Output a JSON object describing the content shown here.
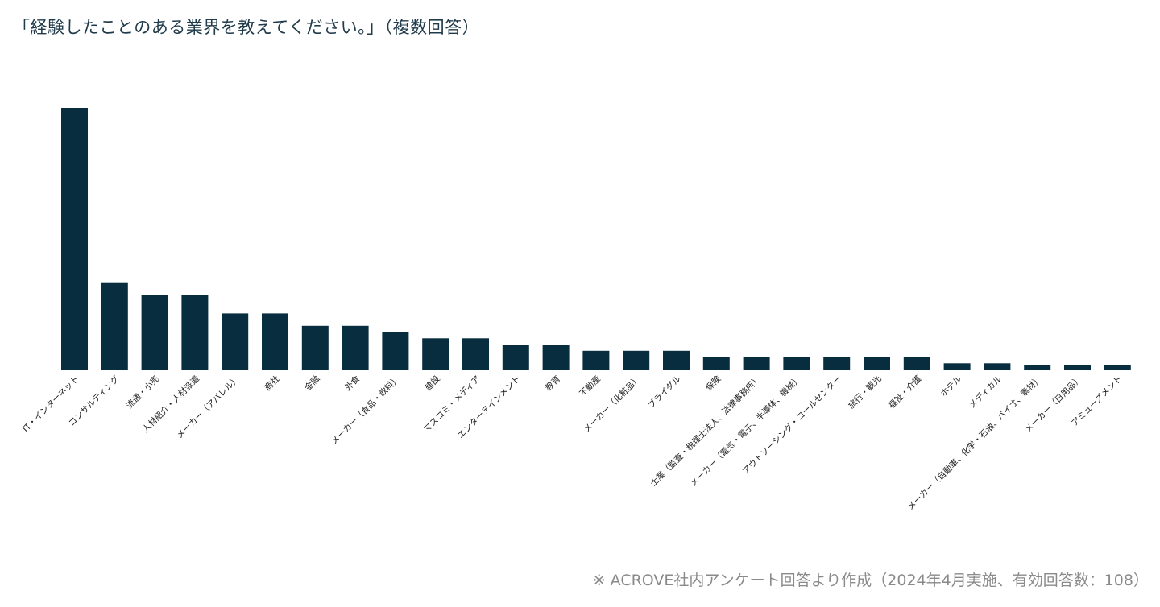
{
  "title": "「経験したことのある業界を教えてください。」（複数回答）",
  "footnote": "※ ACROVE社内アンケート回答より作成（2024年4月実施、有効回答数：108）",
  "colors": {
    "bar": "#082d3f"
  },
  "chart_data": {
    "type": "bar",
    "title": "「経験したことのある業界を教えてください。」（複数回答）",
    "xlabel": "",
    "ylabel": "",
    "ylim": [
      0,
      42
    ],
    "grid": false,
    "categories": [
      "IT・インターネット",
      "コンサルティング",
      "流通・小売",
      "人材紹介・人材派遣",
      "メーカー（アパレル）",
      "商社",
      "金融",
      "外食",
      "メーカー（食品・飲料）",
      "建設",
      "マスコミ・メディア",
      "エンターテインメント",
      "教育",
      "不動産",
      "メーカー（化粧品）",
      "ブライダル",
      "保険",
      "士業（監査・税理士法人、法律事務所）",
      "メーカー（電気・電子、半導体、機械）",
      "アウトソーシング・コールセンター",
      "旅行・観光",
      "福祉・介護",
      "ホテル",
      "メディカル",
      "メーカー（自動車、化学・石油、バイオ、素材）",
      "メーカー（日用品）",
      "アミューズメント"
    ],
    "values": [
      42,
      14,
      12,
      12,
      9,
      9,
      7,
      7,
      6,
      5,
      5,
      4,
      4,
      3,
      3,
      3,
      2,
      2,
      2,
      2,
      2,
      2,
      1,
      1,
      0.7,
      0.7,
      0.7
    ]
  }
}
